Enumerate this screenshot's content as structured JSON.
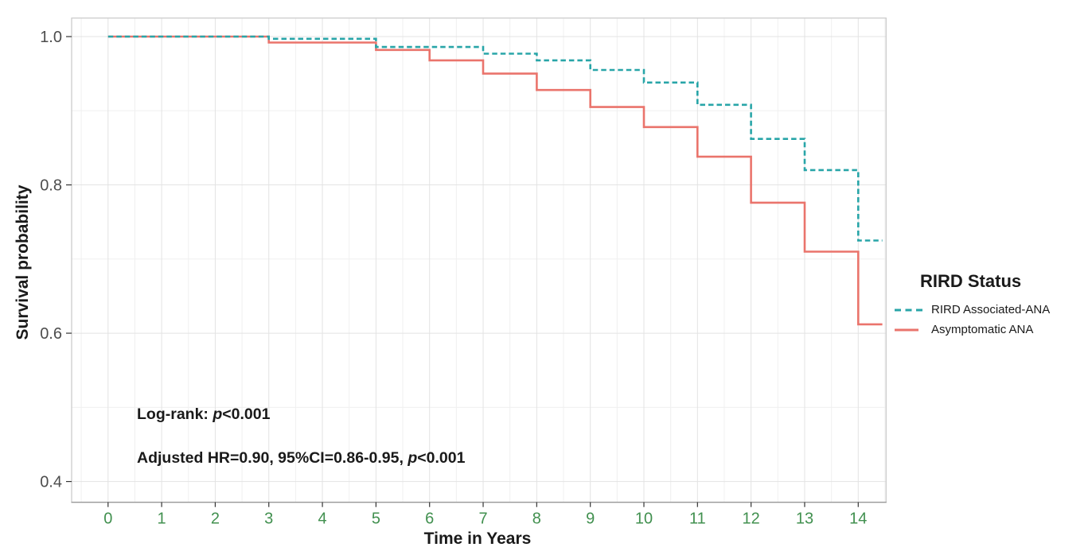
{
  "figure": {
    "background": "#ffffff"
  },
  "chart_data": {
    "type": "line",
    "subtype": "kaplan-meier-step",
    "title": "",
    "xlabel": "Time in Years",
    "ylabel": "Survival probability",
    "xlim": [
      -0.68,
      14.52
    ],
    "ylim": [
      0.372,
      1.025
    ],
    "xticks": [
      0,
      1,
      2,
      3,
      4,
      5,
      6,
      7,
      8,
      9,
      10,
      11,
      12,
      13,
      14
    ],
    "yticks": [
      {
        "label": "1.0",
        "value": 1.0
      },
      {
        "label": "0.8",
        "value": 0.8
      },
      {
        "label": "0.6",
        "value": 0.6
      },
      {
        "label": "0.4",
        "value": 0.4
      }
    ],
    "y_minor_gridlines": [
      0.9,
      0.7,
      0.5
    ],
    "x_minor_step": 0.5,
    "grid": true,
    "legend": {
      "title": "RIRD Status",
      "position": "right",
      "items": [
        {
          "label": "RIRD Associated-ANA",
          "color": "#28A5A8",
          "line_style": "dashed"
        },
        {
          "label": "Asymptomatic ANA",
          "color": "#EA746C",
          "line_style": "solid"
        }
      ]
    },
    "series": [
      {
        "name": "RIRD Associated-ANA",
        "color": "#28A5A8",
        "line_style": "dashed",
        "step_points": [
          [
            0,
            1.0
          ],
          [
            3,
            0.997
          ],
          [
            5,
            0.986
          ],
          [
            7,
            0.977
          ],
          [
            8,
            0.968
          ],
          [
            9,
            0.955
          ],
          [
            10,
            0.938
          ],
          [
            11,
            0.908
          ],
          [
            12,
            0.862
          ],
          [
            13,
            0.82
          ],
          [
            14,
            0.725
          ],
          [
            14.45,
            0.725
          ]
        ]
      },
      {
        "name": "Asymptomatic ANA",
        "color": "#EA746C",
        "line_style": "solid",
        "step_points": [
          [
            0,
            1.0
          ],
          [
            3,
            0.992
          ],
          [
            5,
            0.982
          ],
          [
            6,
            0.968
          ],
          [
            7,
            0.95
          ],
          [
            8,
            0.928
          ],
          [
            9,
            0.905
          ],
          [
            10,
            0.878
          ],
          [
            11,
            0.838
          ],
          [
            12,
            0.776
          ],
          [
            13,
            0.71
          ],
          [
            14,
            0.612
          ],
          [
            14.45,
            0.612
          ]
        ]
      }
    ],
    "annotations": [
      {
        "prefix": "Log-rank: ",
        "italic": "p",
        "suffix": "<0.001"
      },
      {
        "prefix": "Adjusted HR=0.90, 95%CI=0.86-0.95, ",
        "italic": "p",
        "suffix": "<0.001"
      }
    ],
    "style": {
      "x_tick_label_color": "#41904F",
      "y_tick_label_color": "#4d4d4d",
      "axis_title_color": "#1a1a1a",
      "major_grid_color": "#e3e3e3",
      "minor_grid_color": "#f0f0f0",
      "panel_border_color": "#c9c9c9",
      "axis_line_color": "#9a9a9a",
      "tick_mark_color": "#333333",
      "curve_stroke_width": 2.6
    }
  }
}
